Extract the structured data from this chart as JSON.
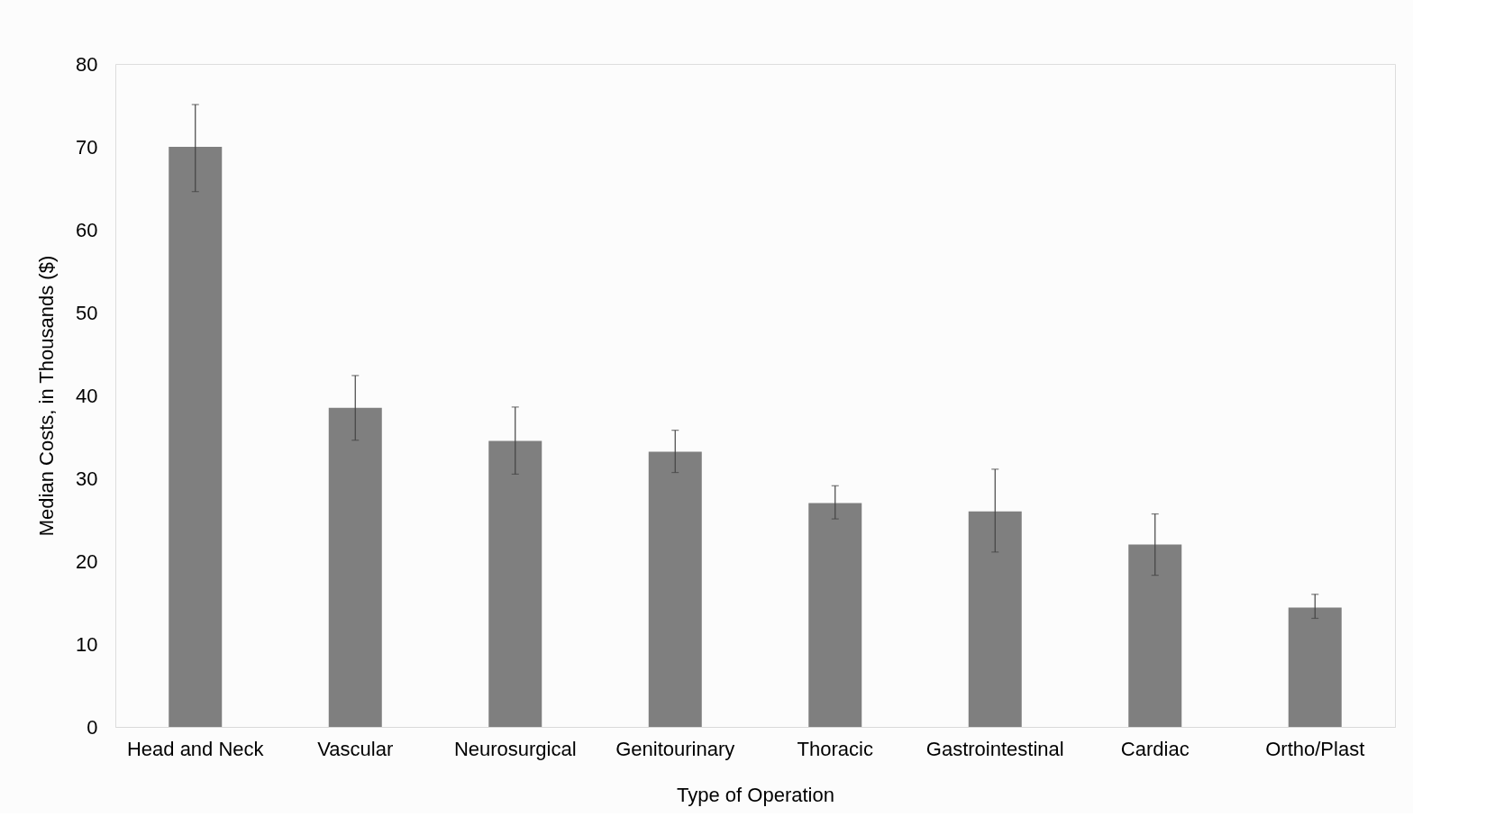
{
  "chart_data": {
    "type": "bar",
    "xlabel": "Type of Operation",
    "ylabel": "Median Costs, in Thousands ($)",
    "categories": [
      "Head and Neck",
      "Vascular",
      "Neurosurgical",
      "Genitourinary",
      "Thoracic",
      "Gastrointestinal",
      "Cardiac",
      "Ortho/Plast"
    ],
    "values": [
      70,
      38.5,
      34.5,
      33.2,
      27.0,
      26.0,
      22.0,
      14.4
    ],
    "errors": [
      [
        64.6,
        75.1
      ],
      [
        34.6,
        42.4
      ],
      [
        30.5,
        38.6
      ],
      [
        30.7,
        35.8
      ],
      [
        25.1,
        29.1
      ],
      [
        21.1,
        31.1
      ],
      [
        18.3,
        25.7
      ],
      [
        13.1,
        16.0
      ]
    ],
    "color": "#7f7f7f",
    "ylim": [
      0,
      80
    ],
    "yticks": [
      0,
      10,
      20,
      30,
      40,
      50,
      60,
      70,
      80
    ],
    "grid": false
  }
}
